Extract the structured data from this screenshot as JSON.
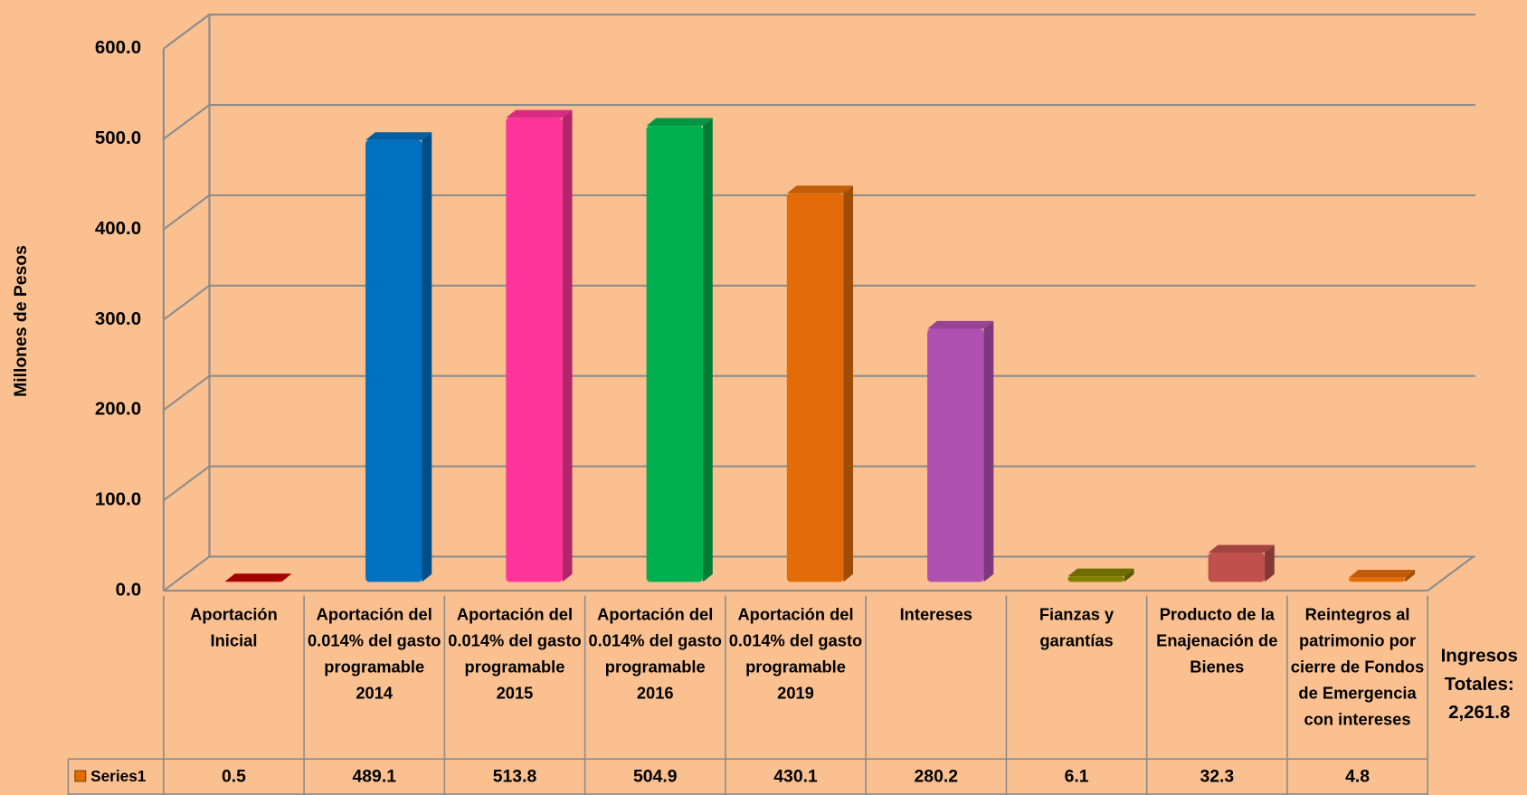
{
  "chart_data": {
    "type": "bar3d",
    "y_axis_label": "Millones de Pesos",
    "categories": [
      "Aportación Inicial",
      "Aportación del 0.014% del gasto programable 2014",
      "Aportación del 0.014% del gasto programable 2015",
      "Aportación del 0.014% del gasto programable 2016",
      "Aportación del 0.014% del gasto programable 2019",
      "Intereses",
      "Fianzas y garantías",
      "Producto de la Enajenación de Bienes",
      "Reintegros al patrimonio por cierre de Fondos de Emergencia con intereses"
    ],
    "series": [
      {
        "name": "Series1",
        "colors": [
          "#c00000",
          "#0070c0",
          "#ff3399",
          "#00b050",
          "#e36c09",
          "#b050b0",
          "#808000",
          "#c0504d",
          "#e36c09"
        ],
        "values": [
          0.5,
          489.1,
          513.8,
          504.9,
          430.1,
          280.2,
          6.1,
          32.3,
          4.8
        ]
      }
    ],
    "ylim": [
      0,
      600
    ],
    "yticks": [
      {
        "value": 0,
        "label": "0.0"
      },
      {
        "value": 100,
        "label": "100.0"
      },
      {
        "value": 200,
        "label": "200.0"
      },
      {
        "value": 300,
        "label": "300.0"
      },
      {
        "value": 400,
        "label": "400.0"
      },
      {
        "value": 500,
        "label": "500.0"
      },
      {
        "value": 600,
        "label": "600.0"
      }
    ],
    "grid": true,
    "data_table": true,
    "annotation": "Ingresos Totales: 2,261.8"
  }
}
